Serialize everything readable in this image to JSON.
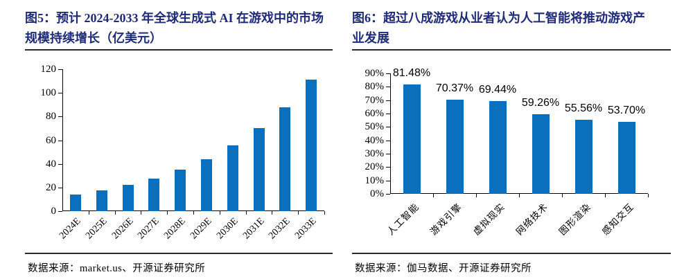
{
  "colors": {
    "bar": "#0a70be",
    "title": "#1f2a78",
    "axis": "#000000",
    "rule": "#2a2a2a"
  },
  "chart_data": [
    {
      "type": "bar",
      "title": "图5：预计 2024-2033 年全球生成式 AI 在游戏中的市场规模持续增长（亿美元）",
      "categories": [
        "2024E",
        "2025E",
        "2026E",
        "2027E",
        "2028E",
        "2029E",
        "2030E",
        "2031E",
        "2032E",
        "2033E"
      ],
      "values": [
        14,
        17.5,
        22,
        27.5,
        35,
        44,
        55.5,
        70,
        88,
        111
      ],
      "ylabel": "",
      "xlabel": "",
      "unit": "亿美元",
      "ylim": [
        0,
        120
      ],
      "ytick_labels": [
        "120",
        "100",
        "80",
        "60",
        "40",
        "20",
        "0"
      ],
      "grid": false,
      "legend": false,
      "source": "数据来源：market.us、开源证券研究所"
    },
    {
      "type": "bar",
      "title": "图6：超过八成游戏从业者认为人工智能将推动游戏产业发展",
      "categories": [
        "人工智能",
        "游戏引擎",
        "虚拟现实",
        "网络技术",
        "图形渲染",
        "感知交互"
      ],
      "values": [
        81.48,
        70.37,
        69.44,
        59.26,
        55.56,
        53.7
      ],
      "value_labels": [
        "81.48%",
        "70.37%",
        "69.44%",
        "59.26%",
        "55.56%",
        "53.70%"
      ],
      "ylabel": "",
      "xlabel": "",
      "ylim": [
        0,
        90
      ],
      "ytick_labels": [
        "90%",
        "80%",
        "70%",
        "60%",
        "50%",
        "40%",
        "30%",
        "20%",
        "10%",
        "0%"
      ],
      "grid": false,
      "legend": false,
      "source": "数据来源：伽马数据、开源证券研究所"
    }
  ]
}
